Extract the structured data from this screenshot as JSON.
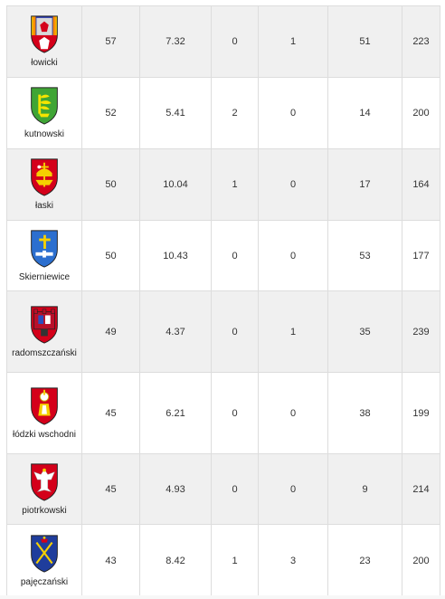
{
  "rows": [
    {
      "county": "łowicki",
      "icon": "lowicki-coat-of-arms-icon",
      "crest": "lowicz",
      "v": [
        "57",
        "7.32",
        "0",
        "1",
        "51",
        "223"
      ]
    },
    {
      "county": "kutnowski",
      "icon": "kutnowski-coat-of-arms-icon",
      "crest": "kutno",
      "v": [
        "52",
        "5.41",
        "2",
        "0",
        "14",
        "200"
      ]
    },
    {
      "county": "łaski",
      "icon": "laski-coat-of-arms-icon",
      "crest": "lask",
      "v": [
        "50",
        "10.04",
        "1",
        "0",
        "17",
        "164"
      ]
    },
    {
      "county": "Skierniewice",
      "icon": "skierniewice-coat-of-arms-icon",
      "crest": "skierniewice",
      "v": [
        "50",
        "10.43",
        "0",
        "0",
        "53",
        "177"
      ]
    },
    {
      "county": "radomszczański",
      "icon": "radomszczanski-coat-of-arms-icon",
      "crest": "radomsko",
      "v": [
        "49",
        "4.37",
        "0",
        "1",
        "35",
        "239"
      ]
    },
    {
      "county": "łódzki wschodni",
      "icon": "lodzki-wschodni-coat-of-arms-icon",
      "crest": "lodzki",
      "v": [
        "45",
        "6.21",
        "0",
        "0",
        "38",
        "199"
      ]
    },
    {
      "county": "piotrkowski",
      "icon": "piotrkowski-coat-of-arms-icon",
      "crest": "piotrkow",
      "v": [
        "45",
        "4.93",
        "0",
        "0",
        "9",
        "214"
      ]
    },
    {
      "county": "pajęczański",
      "icon": "pajeczanski-coat-of-arms-icon",
      "crest": "pajeczno",
      "v": [
        "43",
        "8.42",
        "1",
        "3",
        "23",
        "200"
      ]
    }
  ],
  "colors": {
    "row_odd": "#f0f0f0",
    "row_even": "#ffffff",
    "border": "#dddddd",
    "text": "#333333"
  }
}
